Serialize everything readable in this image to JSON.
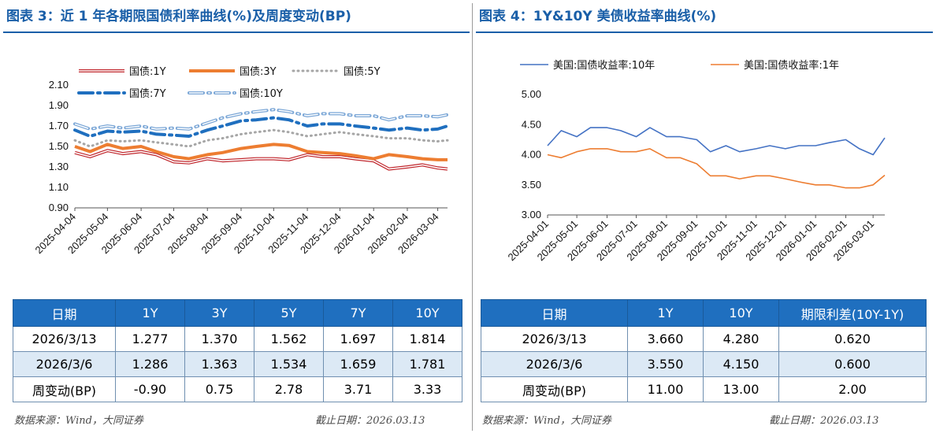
{
  "left": {
    "title": "图表 3：近 1 年各期限国债利率曲线(%)及周度变动(BP)",
    "source": "数据来源：Wind，大同证券",
    "cutoff": "截止日期：2026.03.13",
    "table": {
      "headers": [
        "日期",
        "1Y",
        "3Y",
        "5Y",
        "7Y",
        "10Y"
      ],
      "rows": [
        [
          "2026/3/13",
          "1.277",
          "1.370",
          "1.562",
          "1.697",
          "1.814"
        ],
        [
          "2026/3/6",
          "1.286",
          "1.363",
          "1.534",
          "1.659",
          "1.781"
        ],
        [
          "周变动(BP)",
          "-0.90",
          "0.75",
          "2.78",
          "3.71",
          "3.33"
        ]
      ]
    }
  },
  "right": {
    "title": "图表 4：1Y&10Y 美债收益率曲线(%)",
    "source": "数据来源：Wind，大同证券",
    "cutoff": "截止日期：2026.03.13",
    "table": {
      "headers": [
        "日期",
        "1Y",
        "10Y",
        "期限利差(10Y-1Y)"
      ],
      "rows": [
        [
          "2026/3/13",
          "3.660",
          "4.280",
          "0.620"
        ],
        [
          "2026/3/6",
          "3.550",
          "4.150",
          "0.600"
        ],
        [
          "周变动(BP)",
          "11.00",
          "13.00",
          "2.00"
        ]
      ]
    }
  },
  "chart_data": [
    {
      "type": "line",
      "x": [
        "2025-04-04",
        "2025-04-18",
        "2025-05-04",
        "2025-05-18",
        "2025-06-04",
        "2025-06-18",
        "2025-07-04",
        "2025-07-18",
        "2025-08-04",
        "2025-08-18",
        "2025-09-04",
        "2025-09-18",
        "2025-10-04",
        "2025-10-18",
        "2025-11-04",
        "2025-11-18",
        "2025-12-04",
        "2025-12-18",
        "2026-01-04",
        "2026-01-18",
        "2026-02-04",
        "2026-02-18",
        "2026-03-04",
        "2026-03-13"
      ],
      "x_ticks": [
        "2025-04-04",
        "2025-05-04",
        "2025-06-04",
        "2025-07-04",
        "2025-08-04",
        "2025-09-04",
        "2025-10-04",
        "2025-11-04",
        "2025-12-04",
        "2026-01-04",
        "2026-02-04",
        "2026-03-04"
      ],
      "y_ticks": [
        "0.90",
        "1.10",
        "1.30",
        "1.50",
        "1.70",
        "1.90",
        "2.10"
      ],
      "ylim": [
        0.9,
        2.1
      ],
      "colors": {
        "1Y": "#c0262c",
        "3Y": "#ed7d31",
        "5Y": "#a6a6a6",
        "7Y": "#1f6fbf",
        "10Y": "#7aa6d6"
      },
      "series": [
        {
          "name": "国债:1Y",
          "values": [
            1.44,
            1.4,
            1.46,
            1.43,
            1.45,
            1.42,
            1.35,
            1.34,
            1.38,
            1.36,
            1.37,
            1.38,
            1.38,
            1.37,
            1.42,
            1.4,
            1.4,
            1.38,
            1.36,
            1.28,
            1.3,
            1.32,
            1.29,
            1.28
          ]
        },
        {
          "name": "国债:3Y",
          "values": [
            1.5,
            1.45,
            1.52,
            1.48,
            1.5,
            1.45,
            1.4,
            1.38,
            1.42,
            1.44,
            1.48,
            1.5,
            1.52,
            1.51,
            1.45,
            1.44,
            1.43,
            1.41,
            1.38,
            1.42,
            1.4,
            1.38,
            1.37,
            1.37
          ]
        },
        {
          "name": "国债:5Y",
          "values": [
            1.56,
            1.5,
            1.56,
            1.55,
            1.56,
            1.54,
            1.52,
            1.5,
            1.56,
            1.58,
            1.62,
            1.64,
            1.66,
            1.64,
            1.6,
            1.62,
            1.64,
            1.62,
            1.6,
            1.58,
            1.58,
            1.56,
            1.55,
            1.56
          ]
        },
        {
          "name": "国债:7Y",
          "values": [
            1.66,
            1.6,
            1.65,
            1.64,
            1.65,
            1.62,
            1.61,
            1.6,
            1.66,
            1.7,
            1.75,
            1.76,
            1.78,
            1.76,
            1.7,
            1.72,
            1.72,
            1.7,
            1.68,
            1.66,
            1.68,
            1.66,
            1.67,
            1.7
          ]
        },
        {
          "name": "国债:10Y",
          "values": [
            1.72,
            1.67,
            1.7,
            1.68,
            1.7,
            1.67,
            1.68,
            1.67,
            1.73,
            1.78,
            1.82,
            1.84,
            1.86,
            1.84,
            1.8,
            1.82,
            1.82,
            1.8,
            1.8,
            1.76,
            1.8,
            1.8,
            1.79,
            1.81
          ]
        }
      ]
    },
    {
      "type": "line",
      "x": [
        "2025-04-01",
        "2025-04-15",
        "2025-05-01",
        "2025-05-15",
        "2025-06-01",
        "2025-06-15",
        "2025-07-01",
        "2025-07-15",
        "2025-08-01",
        "2025-08-15",
        "2025-09-01",
        "2025-09-15",
        "2025-10-01",
        "2025-10-15",
        "2025-11-01",
        "2025-11-15",
        "2025-12-01",
        "2025-12-15",
        "2026-01-01",
        "2026-01-15",
        "2026-02-01",
        "2026-02-15",
        "2026-03-01",
        "2026-03-13"
      ],
      "x_ticks": [
        "2025-04-01",
        "2025-05-01",
        "2025-06-01",
        "2025-07-01",
        "2025-08-01",
        "2025-09-01",
        "2025-10-01",
        "2025-11-01",
        "2025-12-01",
        "2026-01-01",
        "2026-02-01",
        "2026-03-01"
      ],
      "y_ticks": [
        "3.00",
        "3.50",
        "4.00",
        "4.50",
        "5.00"
      ],
      "ylim": [
        3.0,
        5.0
      ],
      "colors": {
        "10Y": "#4472c4",
        "1Y": "#ed7d31"
      },
      "series": [
        {
          "name": "美国:国债收益率:10年",
          "values": [
            4.15,
            4.4,
            4.3,
            4.45,
            4.45,
            4.4,
            4.3,
            4.45,
            4.3,
            4.3,
            4.25,
            4.05,
            4.15,
            4.05,
            4.1,
            4.15,
            4.1,
            4.15,
            4.15,
            4.2,
            4.25,
            4.1,
            4.0,
            4.28
          ]
        },
        {
          "name": "美国:国债收益率:1年",
          "values": [
            4.0,
            3.95,
            4.05,
            4.1,
            4.1,
            4.05,
            4.05,
            4.1,
            3.95,
            3.95,
            3.85,
            3.65,
            3.65,
            3.6,
            3.65,
            3.65,
            3.6,
            3.55,
            3.5,
            3.5,
            3.45,
            3.45,
            3.5,
            3.66
          ]
        }
      ]
    }
  ]
}
